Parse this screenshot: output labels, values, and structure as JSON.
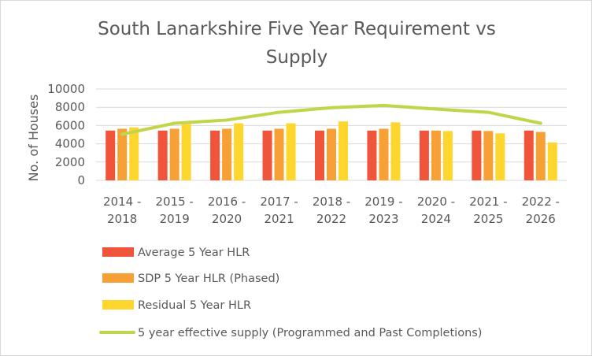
{
  "chart_data": {
    "type": "bar",
    "title_line1": "South Lanarkshire Five Year Requirement vs",
    "title_line2": "Supply",
    "ylabel": "No. of Houses",
    "xlabel": "",
    "ylim": [
      0,
      10000
    ],
    "yticks": [
      "0",
      "2000",
      "4000",
      "6000",
      "8000",
      "10000"
    ],
    "grid": "horizontal",
    "legend_position": "bottom",
    "categories": [
      [
        "2014 -",
        "2018"
      ],
      [
        "2015 -",
        "2019"
      ],
      [
        "2016 -",
        "2020"
      ],
      [
        "2017 -",
        "2021"
      ],
      [
        "2018 -",
        "2022"
      ],
      [
        "2019 -",
        "2023"
      ],
      [
        "2020 -",
        "2024"
      ],
      [
        "2021 -",
        "2025"
      ],
      [
        "2022 -",
        "2026"
      ]
    ],
    "series": [
      {
        "name": "Average 5 Year HLR",
        "kind": "bar",
        "color": "#F0543A",
        "values": [
          5450,
          5450,
          5450,
          5450,
          5450,
          5450,
          5450,
          5450,
          5450
        ]
      },
      {
        "name": "SDP 5 Year HLR (Phased)",
        "kind": "bar",
        "color": "#F7A035",
        "values": [
          5650,
          5650,
          5650,
          5650,
          5650,
          5650,
          5450,
          5400,
          5300
        ]
      },
      {
        "name": "Residual 5 Year HLR",
        "kind": "bar",
        "color": "#FFD62D",
        "values": [
          5800,
          6150,
          6250,
          6250,
          6450,
          6350,
          5400,
          5150,
          4150
        ]
      },
      {
        "name": "5 year effective supply (Programmed and Past Completions)",
        "kind": "line",
        "color": "#C1D54B",
        "values": [
          5050,
          6250,
          6600,
          7450,
          7950,
          8200,
          7800,
          7450,
          6250
        ]
      }
    ]
  }
}
